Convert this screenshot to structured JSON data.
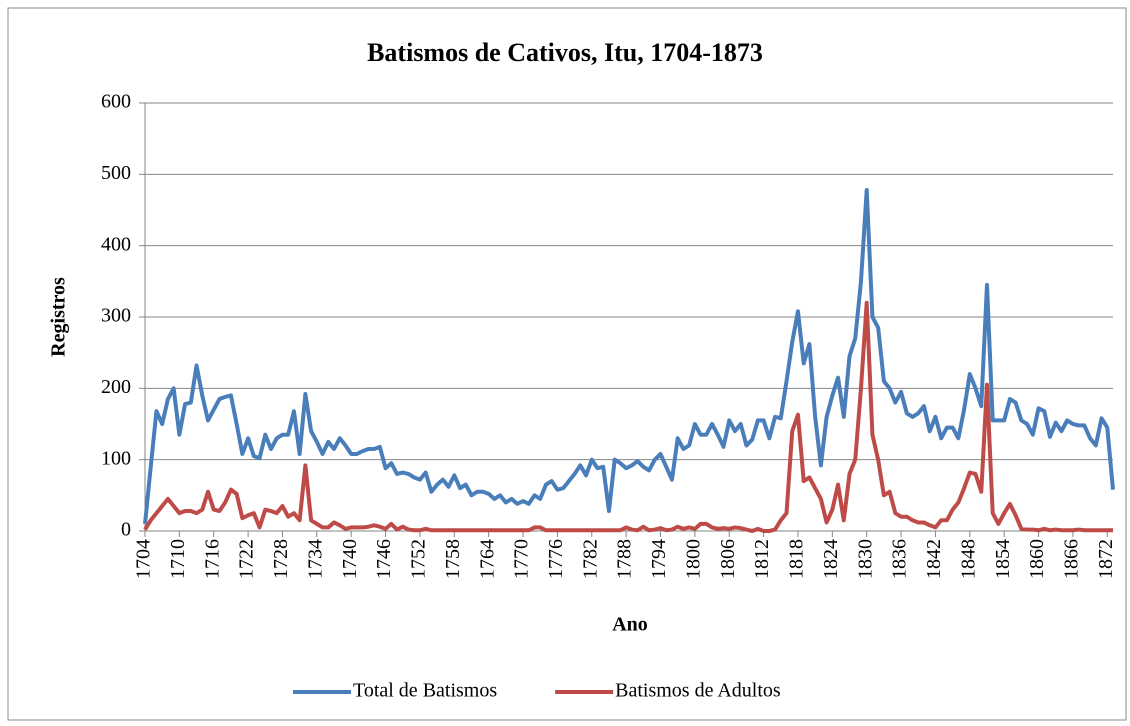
{
  "chart_data": {
    "type": "line",
    "title": "Batismos de Cativos, Itu, 1704-1873",
    "y_label": "Registros",
    "x_label": "Ano",
    "x": [
      1704,
      1705,
      1706,
      1707,
      1708,
      1709,
      1710,
      1711,
      1712,
      1713,
      1714,
      1715,
      1716,
      1717,
      1718,
      1719,
      1720,
      1721,
      1722,
      1723,
      1724,
      1725,
      1726,
      1727,
      1728,
      1729,
      1730,
      1731,
      1732,
      1733,
      1734,
      1735,
      1736,
      1737,
      1738,
      1739,
      1740,
      1741,
      1742,
      1743,
      1744,
      1745,
      1746,
      1747,
      1748,
      1749,
      1750,
      1751,
      1752,
      1753,
      1754,
      1755,
      1756,
      1757,
      1758,
      1759,
      1760,
      1761,
      1762,
      1763,
      1764,
      1765,
      1766,
      1767,
      1768,
      1769,
      1770,
      1771,
      1772,
      1773,
      1774,
      1775,
      1776,
      1777,
      1778,
      1779,
      1780,
      1781,
      1782,
      1783,
      1784,
      1785,
      1786,
      1787,
      1788,
      1789,
      1790,
      1791,
      1792,
      1793,
      1794,
      1795,
      1796,
      1797,
      1798,
      1799,
      1800,
      1801,
      1802,
      1803,
      1804,
      1805,
      1806,
      1807,
      1808,
      1809,
      1810,
      1811,
      1812,
      1813,
      1814,
      1815,
      1816,
      1817,
      1818,
      1819,
      1820,
      1821,
      1822,
      1823,
      1824,
      1825,
      1826,
      1827,
      1828,
      1829,
      1830,
      1831,
      1832,
      1833,
      1834,
      1835,
      1836,
      1837,
      1838,
      1839,
      1840,
      1841,
      1842,
      1843,
      1844,
      1845,
      1846,
      1847,
      1848,
      1849,
      1850,
      1851,
      1852,
      1853,
      1854,
      1855,
      1856,
      1857,
      1858,
      1859,
      1860,
      1861,
      1862,
      1863,
      1864,
      1865,
      1866,
      1867,
      1868,
      1869,
      1870,
      1871,
      1872,
      1873
    ],
    "series": [
      {
        "name": "Total de Batismos",
        "color": "#4a7ebb",
        "values": [
          10,
          90,
          168,
          150,
          185,
          200,
          135,
          178,
          180,
          232,
          190,
          155,
          170,
          185,
          188,
          190,
          150,
          108,
          130,
          105,
          102,
          135,
          115,
          130,
          135,
          135,
          168,
          108,
          192,
          140,
          125,
          108,
          125,
          115,
          130,
          120,
          108,
          108,
          112,
          115,
          115,
          118,
          88,
          95,
          80,
          82,
          80,
          75,
          72,
          82,
          55,
          65,
          72,
          62,
          78,
          60,
          65,
          50,
          55,
          55,
          52,
          45,
          50,
          40,
          45,
          38,
          42,
          38,
          50,
          45,
          65,
          70,
          58,
          60,
          70,
          80,
          92,
          78,
          100,
          88,
          90,
          28,
          100,
          95,
          88,
          92,
          98,
          90,
          85,
          100,
          108,
          90,
          72,
          130,
          115,
          120,
          150,
          135,
          135,
          150,
          135,
          118,
          155,
          140,
          150,
          120,
          128,
          155,
          155,
          130,
          160,
          158,
          210,
          265,
          308,
          235,
          262,
          160,
          92,
          160,
          190,
          215,
          160,
          245,
          270,
          350,
          478,
          300,
          285,
          210,
          200,
          180,
          195,
          165,
          160,
          165,
          175,
          140,
          160,
          130,
          145,
          145,
          130,
          170,
          220,
          200,
          175,
          345,
          155,
          155,
          155,
          185,
          180,
          155,
          150,
          135,
          172,
          168,
          132,
          152,
          140,
          155,
          150,
          148,
          148,
          130,
          120,
          158,
          145,
          58
        ]
      },
      {
        "name": "Batismos de Adultos",
        "color": "#be4b48",
        "values": [
          2,
          15,
          25,
          35,
          45,
          35,
          25,
          28,
          28,
          25,
          30,
          55,
          30,
          28,
          40,
          58,
          52,
          18,
          22,
          25,
          5,
          30,
          28,
          25,
          35,
          20,
          25,
          15,
          92,
          15,
          10,
          5,
          5,
          12,
          8,
          3,
          5,
          5,
          5,
          6,
          8,
          6,
          3,
          10,
          2,
          6,
          2,
          1,
          1,
          3,
          1,
          1,
          1,
          1,
          1,
          1,
          1,
          1,
          1,
          1,
          1,
          1,
          1,
          1,
          1,
          1,
          1,
          1,
          5,
          5,
          1,
          1,
          1,
          1,
          1,
          1,
          1,
          1,
          1,
          1,
          1,
          1,
          1,
          1,
          5,
          2,
          1,
          6,
          1,
          2,
          4,
          1,
          2,
          6,
          3,
          5,
          3,
          10,
          10,
          5,
          3,
          4,
          3,
          5,
          4,
          2,
          0,
          3,
          0,
          0,
          2,
          15,
          25,
          140,
          163,
          70,
          75,
          60,
          45,
          12,
          30,
          65,
          15,
          80,
          100,
          200,
          320,
          135,
          100,
          50,
          55,
          25,
          20,
          20,
          15,
          12,
          12,
          8,
          5,
          15,
          15,
          30,
          40,
          60,
          82,
          80,
          55,
          205,
          25,
          10,
          25,
          38,
          22,
          3,
          2,
          2,
          1,
          3,
          1,
          2,
          1,
          1,
          1,
          2,
          1,
          1,
          1,
          1,
          1,
          1
        ]
      }
    ],
    "xlim": [
      1704,
      1873
    ],
    "xticks": [
      1704,
      1710,
      1716,
      1722,
      1728,
      1734,
      1740,
      1746,
      1752,
      1758,
      1764,
      1770,
      1776,
      1782,
      1788,
      1794,
      1800,
      1806,
      1812,
      1818,
      1824,
      1830,
      1836,
      1842,
      1848,
      1854,
      1860,
      1866,
      1872
    ],
    "ylim": [
      0,
      600
    ],
    "yticks": [
      0,
      100,
      200,
      300,
      400,
      500,
      600
    ],
    "grid": true,
    "legend": "bottom"
  }
}
